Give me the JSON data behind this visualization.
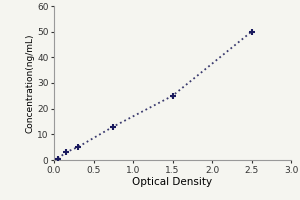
{
  "x_data": [
    0.05,
    0.15,
    0.3,
    0.75,
    1.5,
    2.5
  ],
  "y_data": [
    0.5,
    3.0,
    5.0,
    13.0,
    25.0,
    50.0
  ],
  "xlabel": "Optical Density",
  "ylabel": "Concentration(ng/mL)",
  "xlim": [
    0,
    3
  ],
  "ylim": [
    0,
    60
  ],
  "xticks": [
    0,
    0.5,
    1,
    1.5,
    2,
    2.5,
    3
  ],
  "yticks": [
    0,
    10,
    20,
    30,
    40,
    50,
    60
  ],
  "line_color": "#3a3a6e",
  "marker_color": "#1a1a5e",
  "line_style": "dotted",
  "line_width": 1.3,
  "marker_size": 5,
  "marker_edge_width": 1.5,
  "background_color": "#f5f5f0",
  "tick_labelsize": 6.5,
  "xlabel_fontsize": 7.5,
  "ylabel_fontsize": 6.5
}
